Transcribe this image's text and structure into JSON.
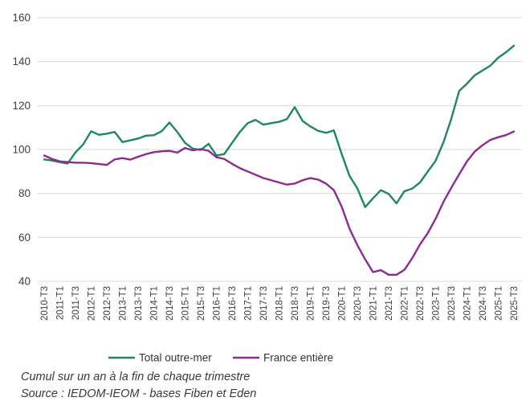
{
  "chart_data": {
    "type": "line",
    "title": "",
    "xlabel": "",
    "ylabel": "",
    "ylim": [
      40,
      160
    ],
    "ytick_step": 20,
    "yticks": [
      40,
      60,
      80,
      100,
      120,
      140,
      160
    ],
    "grid": "horizontal",
    "gridline_color": "#d9d9d9",
    "axis_text_color": "#404040",
    "legend_position": "bottom",
    "categories": [
      "2010-T3",
      "2011-T1",
      "2011-T3",
      "2012-T1",
      "2012-T3",
      "2013-T1",
      "2013-T3",
      "2014-T1",
      "2014-T3",
      "2015-T1",
      "2015-T3",
      "2016-T1",
      "2016-T3",
      "2017-T1",
      "2017-T3",
      "2018-T1",
      "2018-T3",
      "2019-T1",
      "2019-T3",
      "2020-T1",
      "2020-T3",
      "2021-T1",
      "2021-T3",
      "2022-T1",
      "2022-T3",
      "2023-T1",
      "2023-T3",
      "2024-T1",
      "2024-T3",
      "2025-T1",
      "2025-T3"
    ],
    "quarters_per_label": 2,
    "series": [
      {
        "name": "Total outre-mer",
        "color": "#1e875c",
        "values": [
          95.5,
          95,
          94.2,
          93.6,
          98.7,
          102.4,
          108.3,
          106.7,
          107.2,
          108,
          103.4,
          104.2,
          105,
          106.3,
          106.5,
          108.3,
          112.3,
          108,
          103,
          100.4,
          99.8,
          102.6,
          97.3,
          97.9,
          103,
          108,
          112,
          113.5,
          111.3,
          112,
          112.6,
          113.8,
          119.3,
          113,
          110.5,
          108.5,
          107.6,
          108.7,
          98,
          88,
          82.3,
          73.8,
          77.8,
          81.5,
          79.8,
          75.5,
          81,
          82.2,
          85,
          90,
          94.9,
          103.3,
          114,
          126.6,
          130,
          133.8,
          136,
          138.2,
          141.8,
          144.3,
          147.3
        ]
      },
      {
        "name": "France entière",
        "color": "#8c2b93",
        "values": [
          97.3,
          95.7,
          94.6,
          94.3,
          94,
          94,
          93.8,
          93.4,
          93,
          95.5,
          96.1,
          95.4,
          96.7,
          97.9,
          98.8,
          99.2,
          99.4,
          98.6,
          100.7,
          99.6,
          100.2,
          99.4,
          96.5,
          95.7,
          93.5,
          91.5,
          90,
          88.5,
          87,
          86,
          85,
          84,
          84.5,
          86,
          87,
          86.3,
          84.5,
          81.5,
          74,
          64,
          56.5,
          50,
          44.2,
          45.1,
          43,
          43,
          45.2,
          50.5,
          56.8,
          62,
          68.5,
          76.2,
          82.6,
          88.7,
          94.6,
          99.1,
          102,
          104.4,
          105.6,
          106.6,
          108.2
        ]
      }
    ]
  },
  "footer": {
    "caption": "Cumul sur un an à la fin de chaque trimestre",
    "source": "Source : IEDOM-IEOM - bases Fiben et Eden"
  }
}
